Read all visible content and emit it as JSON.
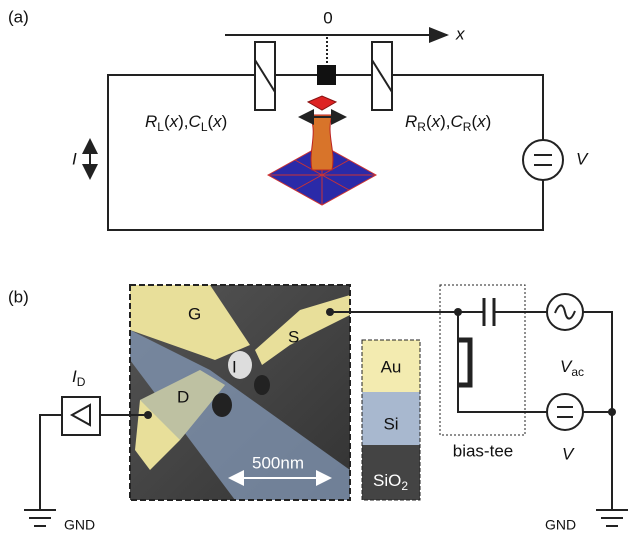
{
  "panel_a": {
    "label": "(a)",
    "axis_zero": "0",
    "axis_x": "x",
    "current": "I",
    "left_element": [
      "R",
      "L",
      "(",
      "x",
      "),",
      "C",
      "L",
      "(",
      "x",
      ")"
    ],
    "right_element": [
      "R",
      "R",
      "(",
      "x",
      "),",
      "C",
      "R",
      "(",
      "x",
      ")"
    ],
    "source": "V"
  },
  "panel_b": {
    "label": "(b)",
    "amplifier": [
      "I",
      "D"
    ],
    "terminals": {
      "gate": "G",
      "source": "S",
      "drain": "D",
      "island": "I"
    },
    "scale_bar": "500nm",
    "materials": [
      "Au",
      "Si",
      [
        "SiO",
        "2"
      ]
    ],
    "ac_source": [
      "V",
      "ac"
    ],
    "dc_source": "V",
    "bias_tee": "bias-tee",
    "ground_left": "GND",
    "ground_right": "GND"
  }
}
